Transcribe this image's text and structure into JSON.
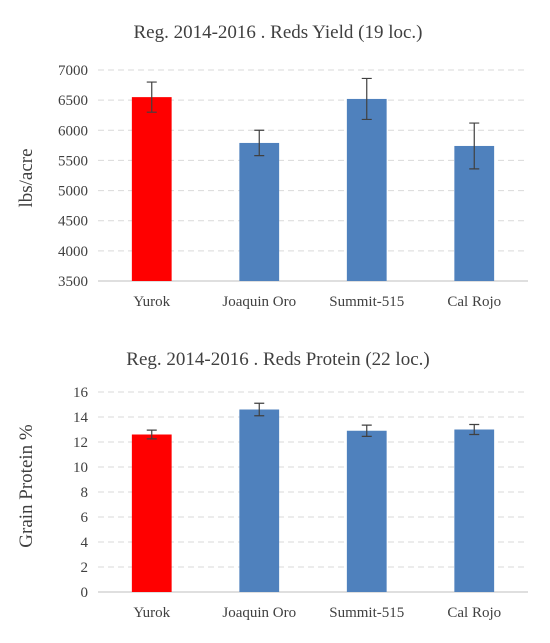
{
  "chart_data": [
    {
      "type": "bar",
      "title": "Reg. 2014-2016 . Reds Yield (19 loc.)",
      "xlabel": "",
      "ylabel": "lbs/acre",
      "ylim": [
        3500,
        7000
      ],
      "yticks": [
        3500,
        4000,
        4500,
        5000,
        5500,
        6000,
        6500,
        7000
      ],
      "grid": true,
      "categories": [
        "Yurok",
        "Joaquin Oro",
        "Summit-515",
        "Cal Rojo"
      ],
      "values": [
        6550,
        5790,
        6520,
        5740
      ],
      "error": [
        250,
        210,
        340,
        380
      ],
      "colors": [
        "#ff0000",
        "#4f81bd",
        "#4f81bd",
        "#4f81bd"
      ]
    },
    {
      "type": "bar",
      "title": "Reg. 2014-2016 . Reds Protein (22 loc.)",
      "xlabel": "",
      "ylabel": "Grain Protein %",
      "ylim": [
        0,
        16
      ],
      "yticks": [
        0,
        2,
        4,
        6,
        8,
        10,
        12,
        14,
        16
      ],
      "grid": true,
      "categories": [
        "Yurok",
        "Joaquin Oro",
        "Summit-515",
        "Cal Rojo"
      ],
      "values": [
        12.6,
        14.6,
        12.9,
        13.0
      ],
      "error": [
        0.35,
        0.5,
        0.45,
        0.4
      ],
      "colors": [
        "#ff0000",
        "#4f81bd",
        "#4f81bd",
        "#4f81bd"
      ]
    }
  ]
}
